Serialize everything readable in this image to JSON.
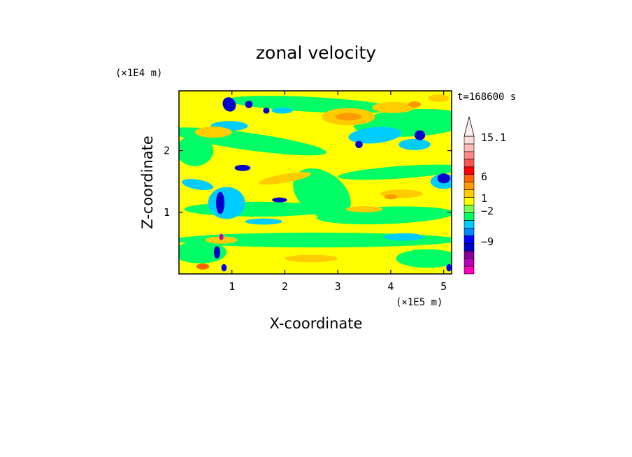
{
  "chart_data": {
    "type": "heatmap",
    "title": "zonal velocity",
    "xlabel": "X-coordinate",
    "ylabel": "Z-coordinate",
    "x_unit": "(×1E5 m)",
    "y_unit": "(×1E4 m)",
    "time_label": "t=168600 s",
    "xlim": [
      0,
      5.15
    ],
    "ylim": [
      0,
      2.97
    ],
    "x_ticks": [
      1,
      2,
      3,
      4,
      5
    ],
    "y_ticks": [
      1,
      2
    ],
    "grid": false,
    "colorbar": {
      "extend": "max",
      "colors": [
        "#ff00bb",
        "#bb00bb",
        "#880099",
        "#0000cc",
        "#0000ff",
        "#0088ff",
        "#00ccff",
        "#00ff66",
        "#77ff55",
        "#ffff00",
        "#ffcc00",
        "#ff9900",
        "#ff6600",
        "#ff0000",
        "#ff5555",
        "#ff8888",
        "#ffbbbb",
        "#ffdddd"
      ],
      "labels": [
        "15.1",
        "6",
        "1",
        "−2",
        "−9"
      ]
    },
    "field_note": "contoured u field; values roughly between −12 and 15"
  }
}
